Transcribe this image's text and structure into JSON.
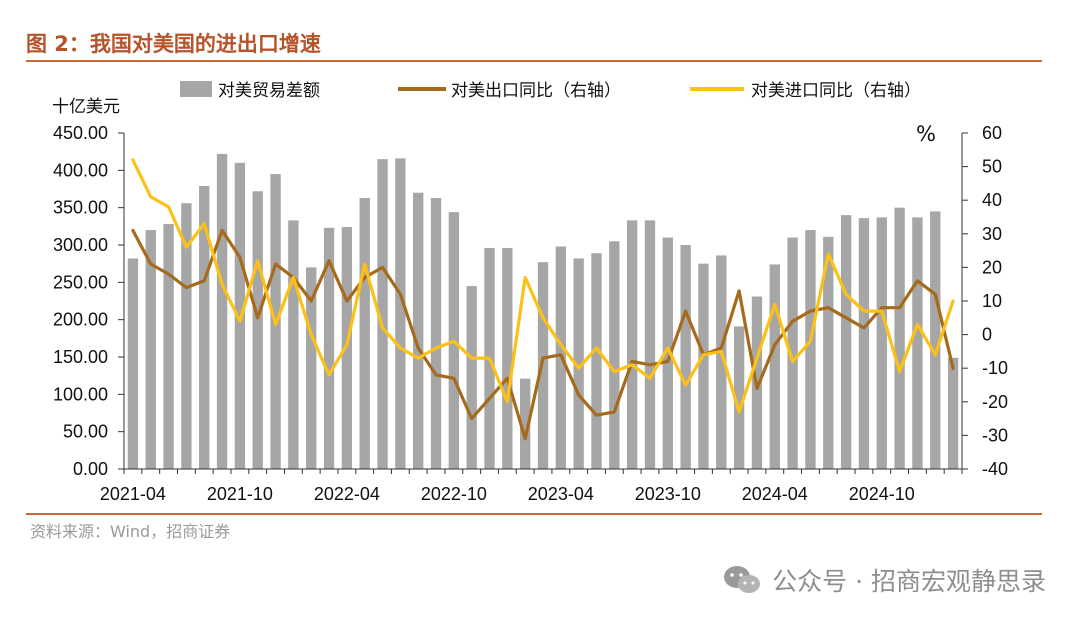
{
  "title": "图 2：我国对美国的进出口增速",
  "source": "资料来源：Wind，招商证券",
  "watermark": "公众号 · 招商宏观静思录",
  "colors": {
    "bar": "#a6a6a6",
    "export": "#a56a1b",
    "import": "#fcc116",
    "title": "#b5532a"
  },
  "chart_data": {
    "type": "bar",
    "left_unit": "十亿美元",
    "right_unit": "%",
    "x_tick_labels": [
      "2021-04",
      "2021-10",
      "2022-04",
      "2022-10",
      "2023-04",
      "2023-10",
      "2024-04",
      "2024-10"
    ],
    "categories": [
      "2021-04",
      "2021-05",
      "2021-06",
      "2021-07",
      "2021-08",
      "2021-09",
      "2021-10",
      "2021-11",
      "2021-12",
      "2022-01",
      "2022-02",
      "2022-03",
      "2022-04",
      "2022-05",
      "2022-06",
      "2022-07",
      "2022-08",
      "2022-09",
      "2022-10",
      "2022-11",
      "2022-12",
      "2023-01",
      "2023-02",
      "2023-03",
      "2023-04",
      "2023-05",
      "2023-06",
      "2023-07",
      "2023-08",
      "2023-09",
      "2023-10",
      "2023-11",
      "2023-12",
      "2024-01",
      "2024-02",
      "2024-03",
      "2024-04",
      "2024-05",
      "2024-06",
      "2024-07",
      "2024-08",
      "2024-09",
      "2024-10",
      "2024-11",
      "2024-12",
      "2025-01",
      "2025-02"
    ],
    "left_axis": {
      "min": 0,
      "max": 450,
      "step": 50,
      "tick_labels": [
        "0.00",
        "50.00",
        "100.00",
        "150.00",
        "200.00",
        "250.00",
        "300.00",
        "350.00",
        "400.00",
        "450.00"
      ]
    },
    "right_axis": {
      "min": -40,
      "max": 60,
      "step": 10,
      "tick_labels": [
        "-40",
        "-30",
        "-20",
        "-10",
        "0",
        "10",
        "20",
        "30",
        "40",
        "50",
        "60"
      ]
    },
    "series": [
      {
        "name": "对美贸易差额",
        "type": "bar",
        "axis": "left",
        "values": [
          282,
          320,
          328,
          356,
          379,
          422,
          410,
          372,
          395,
          333,
          270,
          323,
          324,
          363,
          415,
          416,
          370,
          363,
          344,
          245,
          296,
          296,
          121,
          277,
          298,
          282,
          289,
          305,
          333,
          333,
          310,
          300,
          275,
          286,
          191,
          231,
          274,
          310,
          320,
          311,
          340,
          336,
          337,
          350,
          337,
          345,
          149
        ]
      },
      {
        "name": "对美出口同比（右轴）",
        "type": "line",
        "axis": "right",
        "values": [
          31,
          21,
          18,
          14,
          16,
          31,
          23,
          5,
          21,
          17,
          10,
          22,
          10,
          17,
          20,
          12,
          -4,
          -12,
          -13,
          -25,
          -19,
          -13,
          -31,
          -7,
          -6,
          -18,
          -24,
          -23,
          -8,
          -9,
          -8,
          7,
          -6,
          -4,
          13,
          -16,
          -3,
          4,
          7,
          8,
          5,
          2,
          8,
          8,
          16,
          12,
          -10
        ]
      },
      {
        "name": "对美进口同比（右轴）",
        "type": "line",
        "axis": "right",
        "values": [
          52,
          41,
          38,
          26,
          33,
          15,
          4,
          22,
          3,
          17,
          0,
          -12,
          -3,
          21,
          2,
          -4,
          -7,
          -4,
          -2,
          -7,
          -7,
          -20,
          17,
          5,
          -3,
          -10,
          -4,
          -11,
          -9,
          -13,
          -4,
          -15,
          -6,
          -5,
          -23,
          -7,
          9,
          -8,
          -2,
          24,
          12,
          7,
          7,
          -11,
          3,
          -6,
          10
        ]
      }
    ],
    "grid": false,
    "legend_position": "top"
  }
}
